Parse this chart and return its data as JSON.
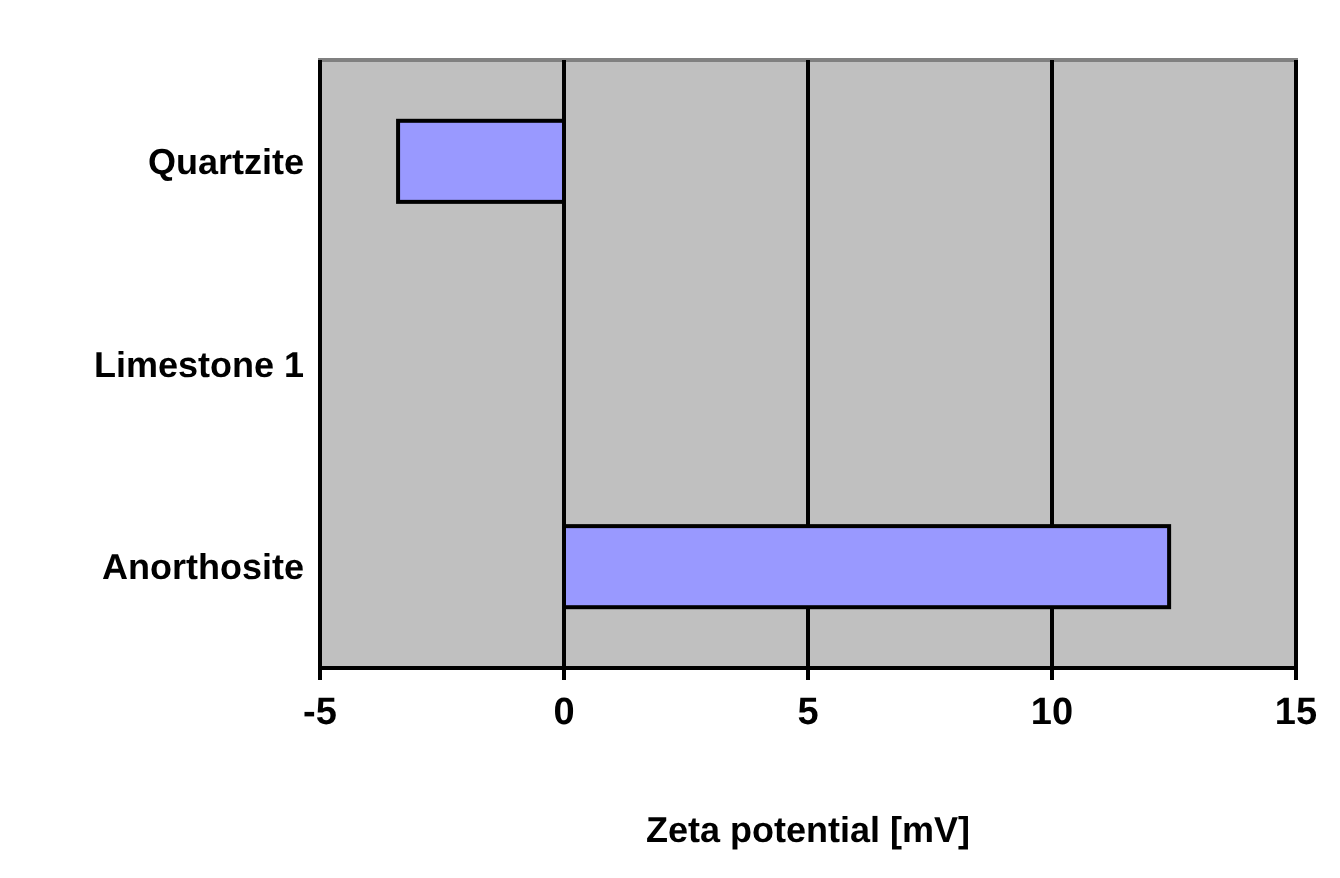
{
  "chart_data": {
    "type": "bar",
    "orientation": "horizontal",
    "xlabel": "Zeta potential [mV]",
    "categories": [
      "Quartzite",
      "Limestone 1",
      "Anorthosite"
    ],
    "values": [
      -3.4,
      0,
      12.4
    ],
    "color": "#9999ff",
    "xlim": [
      -5,
      15
    ],
    "xticks": [
      -5,
      0,
      5,
      10,
      15
    ],
    "grid": "x"
  }
}
